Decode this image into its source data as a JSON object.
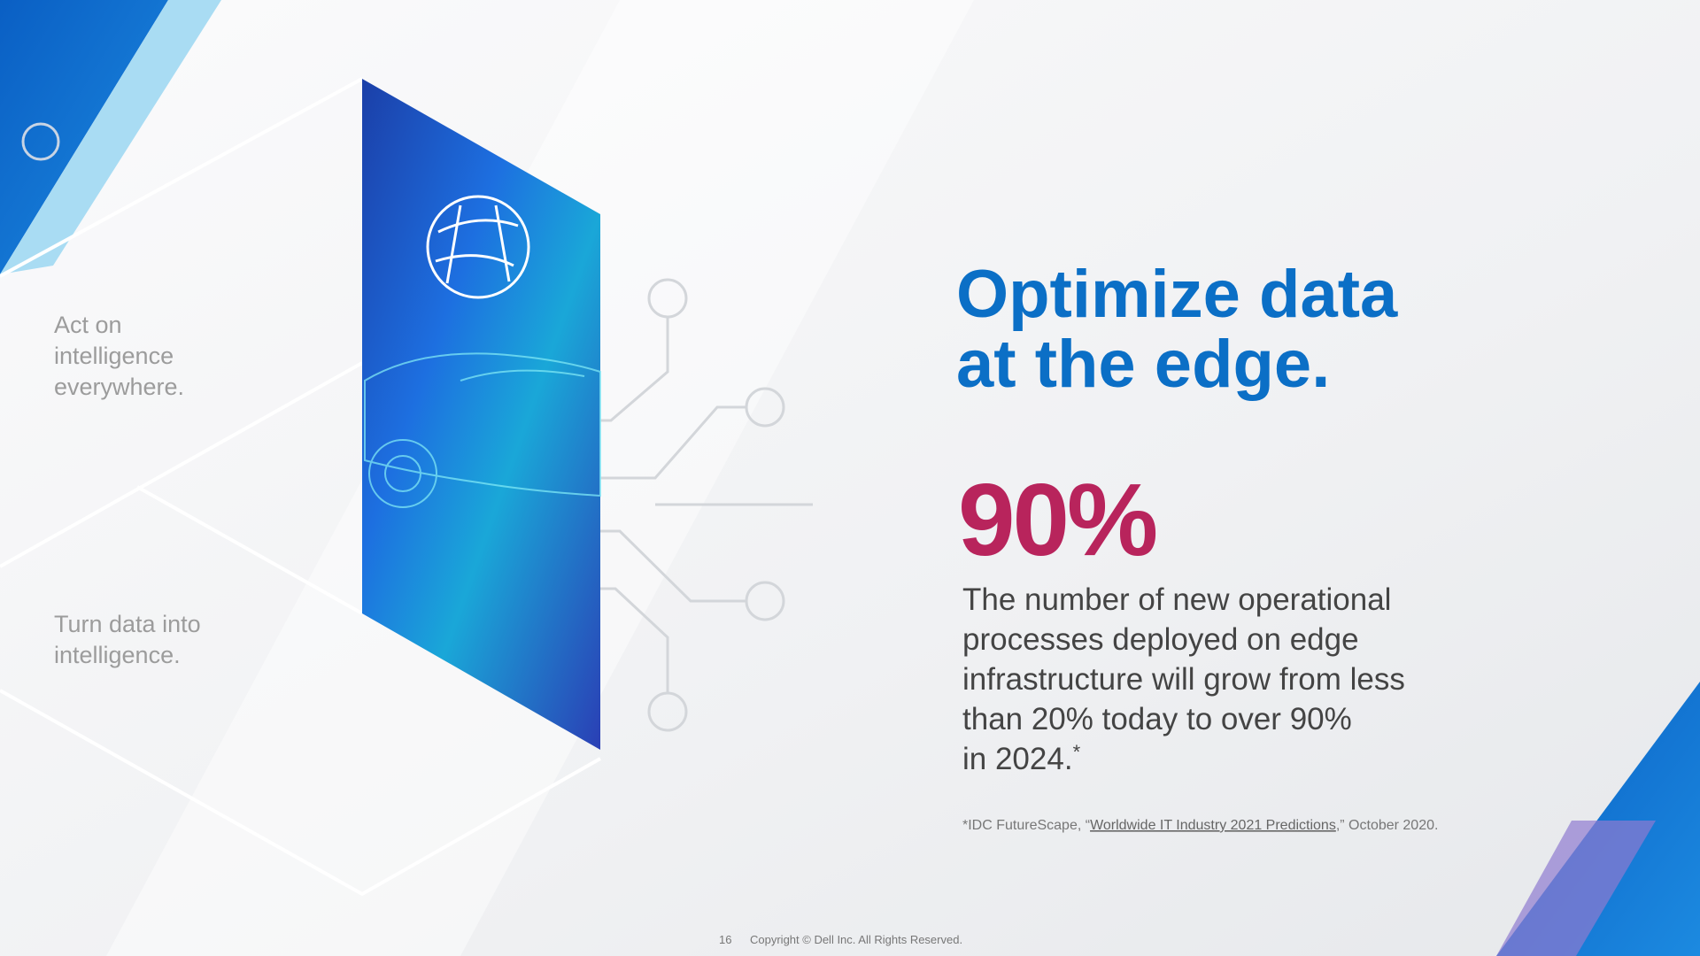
{
  "slide": {
    "side_labels": [
      [
        "Act on",
        "intelligence",
        "everywhere."
      ],
      [
        "Turn data into",
        "intelligence."
      ]
    ],
    "title_lines": [
      "Optimize data",
      "at the edge."
    ],
    "stat": "90%",
    "description_lines": [
      "The number of new operational",
      "processes deployed on edge",
      "infrastructure will grow from less",
      "than 20% today to over 90%",
      "in 2024."
    ],
    "description_marker": "*",
    "footnote": {
      "prefix": "*IDC FutureScape, “",
      "link": "Worldwide IT Industry 2021 Predictions",
      "suffix": ",” October 2020."
    },
    "footer": {
      "page": "16",
      "copyright": "Copyright © Dell Inc. All Rights Reserved."
    }
  }
}
